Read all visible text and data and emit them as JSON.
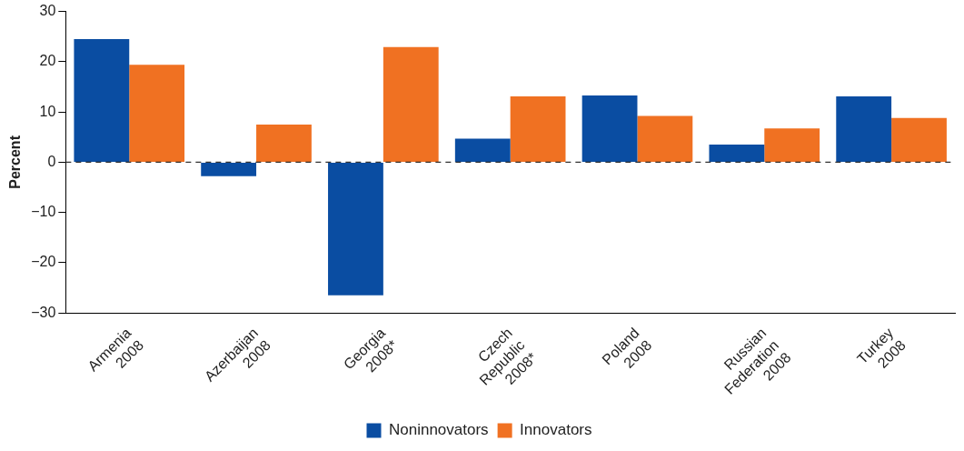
{
  "chart_data": {
    "type": "bar",
    "ylabel": "Percent",
    "categories": [
      "Armenia\n2008",
      "Azerbaijan\n2008",
      "Georgia\n2008*",
      "Czech\nRepublic\n2008*",
      "Poland\n2008",
      "Russian\nFederation\n2008",
      "Turkey\n2008"
    ],
    "series": [
      {
        "name": "Noninnovators",
        "color": "#0a4da2",
        "values": [
          24.5,
          -2.8,
          -26.5,
          4.7,
          13.3,
          3.5,
          13.1
        ]
      },
      {
        "name": "Innovators",
        "color": "#f07122",
        "values": [
          19.4,
          7.5,
          22.9,
          13.1,
          9.2,
          6.7,
          8.8
        ]
      }
    ],
    "ylim": [
      -30,
      30
    ],
    "yticks": [
      -30,
      -20,
      -10,
      0,
      10,
      20,
      30
    ],
    "grid": false,
    "legend": "bottom",
    "ref_lines": [
      {
        "axis": "y",
        "value": 0,
        "line_style": "dashed",
        "color": "#333333"
      }
    ]
  }
}
